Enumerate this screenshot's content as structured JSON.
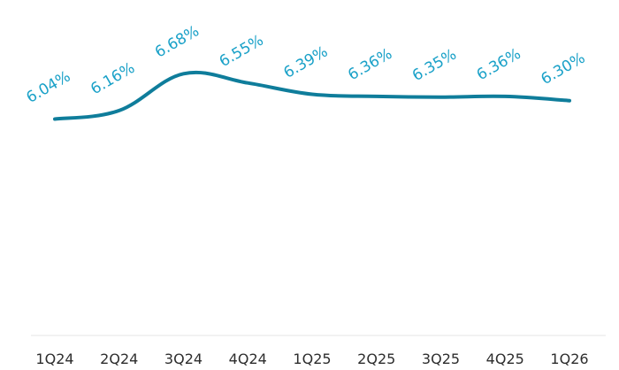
{
  "chart_data": {
    "type": "line",
    "title": "",
    "xlabel": "",
    "ylabel": "",
    "categories": [
      "1Q24",
      "2Q24",
      "3Q24",
      "4Q24",
      "1Q25",
      "2Q25",
      "3Q25",
      "4Q25",
      "1Q26"
    ],
    "series": [
      {
        "values": [
          6.04,
          6.16,
          6.68,
          6.55,
          6.39,
          6.36,
          6.35,
          6.36,
          6.3
        ],
        "labels": [
          "6.04%",
          "6.16%",
          "6.68%",
          "6.55%",
          "6.39%",
          "6.36%",
          "6.35%",
          "6.36%",
          "6.30%"
        ]
      }
    ],
    "grid": false,
    "line_color": "#0f7d9b",
    "label_color": "#1aa1c8",
    "drop_line_color": "#c9dde6",
    "axis_color": "#e6e6e6",
    "tick_text_color": "#2d2d2d"
  }
}
